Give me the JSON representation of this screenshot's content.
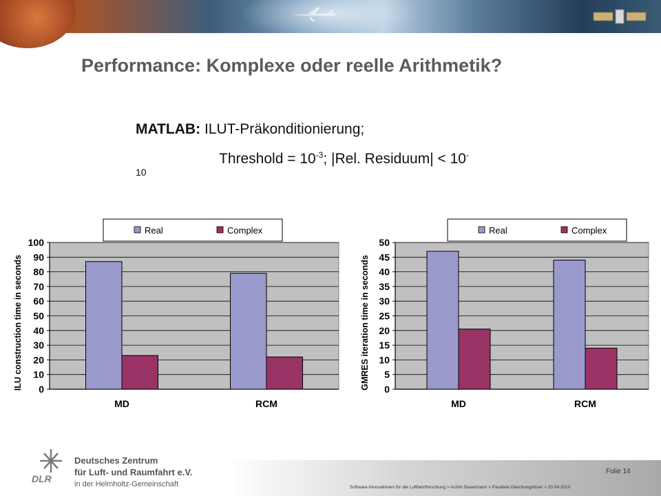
{
  "slide": {
    "title": "Performance: Komplexe oder reelle Arithmetik?",
    "line1_prefix": "MATLAB:",
    "line1_text": "ILUT-Präkonditionierung;",
    "line2_a": "Threshold = 10",
    "line2_sup1": "-3",
    "line2_b": "; |Rel. Residuum| < 10",
    "line2_sup2": "-",
    "line3": "10"
  },
  "footer": {
    "org_line1": "Deutsches Zentrum",
    "org_line2": "für Luft- und Raumfahrt e.V.",
    "org_line3": "in der Helmholtz-Gemeinschaft",
    "logo_text": "DLR",
    "page_label": "Folie 14",
    "footnote": "Software-Innovationen  für die Luftfahrtforschung  > Achim Basermann  > Parallele Gleichungslöser  > 20.04.2010"
  },
  "colors": {
    "real": "#9999cc",
    "complex": "#993366",
    "plot_bg": "#c0c0c0",
    "title": "#5b5b5b"
  },
  "chart_data": [
    {
      "type": "bar",
      "categories": [
        "MD",
        "RCM"
      ],
      "series": [
        {
          "name": "Real",
          "values": [
            87,
            79
          ]
        },
        {
          "name": "Complex",
          "values": [
            23,
            22
          ]
        }
      ],
      "ylabel": "ILU construction time in seconds",
      "ylim": [
        0,
        100
      ],
      "yticks": [
        0,
        10,
        20,
        30,
        40,
        50,
        60,
        70,
        80,
        90,
        100
      ],
      "legend": "top",
      "grid": true
    },
    {
      "type": "bar",
      "categories": [
        "MD",
        "RCM"
      ],
      "series": [
        {
          "name": "Real",
          "values": [
            47,
            44
          ]
        },
        {
          "name": "Complex",
          "values": [
            20.5,
            14
          ]
        }
      ],
      "ylabel": "GMRES iteration time in seconds",
      "ylim": [
        0,
        50
      ],
      "yticks": [
        0,
        5,
        10,
        15,
        20,
        25,
        30,
        35,
        40,
        45,
        50
      ],
      "legend": "top",
      "grid": true
    }
  ]
}
